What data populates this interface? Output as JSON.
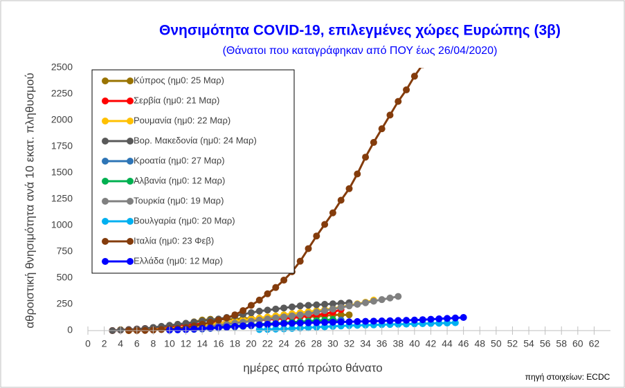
{
  "chart_data": {
    "type": "line",
    "title": "Θνησιμότητα COVID-19, επιλεγμένες χώρες Ευρώπης (3β)",
    "subtitle": "(Θάνατοι που καταγράφηκαν από ΠΟΥ έως 26/04/2020)",
    "x_label": "ημέρες από πρώτο θάνατο",
    "y_label": "αθροιστική θνησιμότητα ανά 10 εκατ. πληθυσμού",
    "source": "πηγή στοιχείων: ECDC",
    "xlim": [
      0,
      64
    ],
    "xticks": [
      0,
      2,
      4,
      6,
      8,
      10,
      12,
      14,
      16,
      18,
      20,
      22,
      24,
      26,
      28,
      30,
      32,
      34,
      36,
      38,
      40,
      42,
      44,
      46,
      48,
      50,
      52,
      54,
      56,
      58,
      60,
      62
    ],
    "ylim": [
      0,
      2500
    ],
    "yticks": [
      0,
      250,
      500,
      750,
      1000,
      1250,
      1500,
      1750,
      2000,
      2250,
      2500
    ],
    "grid": false,
    "legend": "upper left",
    "series": [
      {
        "name": "Κύπρος (ημ0: 25 Μαρ)",
        "color": "#997300",
        "x": [
          3,
          4,
          5,
          6,
          7,
          8,
          9,
          10,
          11,
          12,
          13,
          14,
          15,
          16,
          17,
          18,
          19,
          20,
          21,
          22,
          23,
          24,
          25,
          26,
          27,
          28,
          29,
          30,
          31,
          32
        ],
        "values": [
          0,
          8,
          8,
          8,
          8,
          16,
          25,
          33,
          50,
          58,
          83,
          100,
          108,
          108,
          108,
          108,
          116,
          116,
          116,
          116,
          125,
          125,
          125,
          133,
          133,
          133,
          141,
          150,
          150,
          150
        ]
      },
      {
        "name": "Σερβία (ημ0: 21 Μαρ)",
        "color": "#ff0000",
        "x": [
          3,
          4,
          5,
          6,
          7,
          8,
          9,
          10,
          11,
          12,
          13,
          14,
          15,
          16,
          17,
          18,
          19,
          20,
          21,
          22,
          23,
          24,
          25,
          26,
          27,
          28,
          29,
          30,
          31
        ],
        "values": [
          0,
          5,
          10,
          15,
          20,
          25,
          30,
          40,
          50,
          55,
          60,
          65,
          70,
          75,
          80,
          85,
          90,
          95,
          100,
          105,
          110,
          115,
          120,
          130,
          140,
          150,
          160,
          175,
          200
        ]
      },
      {
        "name": "Ρουμανία (ημ0: 22 Μαρ)",
        "color": "#ffc000",
        "x": [
          5,
          6,
          7,
          8,
          9,
          10,
          11,
          12,
          13,
          14,
          15,
          16,
          17,
          18,
          19,
          20,
          21,
          22,
          23,
          24,
          25,
          26,
          27,
          28,
          29,
          30,
          31,
          32,
          33,
          34,
          35
        ],
        "values": [
          0,
          2,
          5,
          10,
          15,
          20,
          25,
          30,
          40,
          50,
          60,
          70,
          80,
          90,
          100,
          110,
          120,
          130,
          140,
          150,
          160,
          170,
          180,
          190,
          200,
          210,
          225,
          240,
          255,
          270,
          290
        ]
      },
      {
        "name": "Βορ. Μακεδονία (ημ0: 24 Μαρ)",
        "color": "#595959",
        "x": [
          3,
          4,
          5,
          6,
          7,
          8,
          9,
          10,
          11,
          12,
          13,
          14,
          15,
          16,
          17,
          18,
          19,
          20,
          21,
          22,
          23,
          24,
          25,
          26,
          27,
          28,
          29,
          30,
          31,
          32
        ],
        "values": [
          0,
          5,
          10,
          15,
          20,
          30,
          40,
          50,
          60,
          70,
          80,
          90,
          100,
          110,
          125,
          140,
          155,
          170,
          185,
          195,
          205,
          215,
          225,
          235,
          240,
          245,
          250,
          255,
          260,
          265
        ]
      },
      {
        "name": "Κροατία (ημ0: 27 Μαρ)",
        "color": "#2e75b6",
        "x": [
          10,
          11,
          12,
          13,
          14,
          15,
          16,
          17,
          18,
          19,
          20,
          21,
          22,
          23,
          24,
          25,
          26,
          27,
          28,
          29,
          30,
          31
        ],
        "values": [
          5,
          8,
          10,
          12,
          15,
          20,
          25,
          30,
          35,
          40,
          45,
          50,
          55,
          60,
          65,
          70,
          75,
          80,
          85,
          90,
          95,
          100
        ]
      },
      {
        "name": "Αλβανία (ημ0: 12 Μαρ)",
        "color": "#00b050",
        "x": [
          10,
          11,
          12,
          13,
          14,
          15,
          16,
          17,
          18,
          19,
          20,
          21,
          22,
          23,
          24,
          25,
          26,
          27,
          28,
          29,
          30
        ],
        "values": [
          5,
          10,
          15,
          20,
          25,
          30,
          35,
          40,
          45,
          50,
          55,
          60,
          65,
          70,
          75,
          80,
          85,
          90,
          95,
          100,
          105
        ]
      },
      {
        "name": "Τουρκία (ημ0: 19 Μαρ)",
        "color": "#808080",
        "x": [
          10,
          11,
          12,
          13,
          14,
          15,
          16,
          17,
          18,
          19,
          20,
          21,
          22,
          23,
          24,
          25,
          26,
          27,
          28,
          29,
          30,
          31,
          32,
          33,
          34,
          35,
          36,
          37,
          38
        ],
        "values": [
          5,
          10,
          15,
          20,
          30,
          40,
          50,
          60,
          70,
          80,
          90,
          100,
          110,
          120,
          130,
          140,
          150,
          160,
          175,
          190,
          205,
          220,
          235,
          250,
          265,
          280,
          295,
          310,
          325
        ]
      },
      {
        "name": "Βουλγαρία (ημ0: 20 Μαρ)",
        "color": "#00b0f0",
        "x": [
          21,
          22,
          23,
          24,
          25,
          26,
          27,
          28,
          29,
          30,
          31,
          32,
          33,
          34,
          35,
          36,
          37,
          38,
          39,
          40,
          41,
          42,
          43,
          44,
          45
        ],
        "values": [
          10,
          12,
          14,
          16,
          20,
          24,
          28,
          32,
          36,
          40,
          44,
          48,
          50,
          52,
          54,
          56,
          58,
          60,
          62,
          64,
          66,
          68,
          70,
          72,
          75
        ]
      },
      {
        "name": "Ιταλία (ημ0: 23 Φεβ)",
        "color": "#843c0c",
        "x": [
          5,
          6,
          7,
          8,
          9,
          10,
          11,
          12,
          13,
          14,
          15,
          16,
          17,
          18,
          19,
          20,
          21,
          22,
          23,
          24,
          25,
          26,
          27,
          28,
          29,
          30,
          31,
          32,
          33,
          34,
          35,
          36,
          37,
          38,
          39,
          40,
          41,
          42
        ],
        "values": [
          0,
          1,
          2,
          5,
          10,
          15,
          20,
          30,
          45,
          60,
          80,
          100,
          120,
          150,
          190,
          240,
          290,
          350,
          410,
          480,
          560,
          660,
          780,
          900,
          1010,
          1120,
          1240,
          1350,
          1490,
          1650,
          1790,
          1920,
          2050,
          2180,
          2290,
          2420,
          2530,
          2650
        ]
      },
      {
        "name": "Ελλάδα (ημ0: 12 Μαρ)",
        "color": "#0000ff",
        "x": [
          10,
          11,
          12,
          13,
          14,
          15,
          16,
          17,
          18,
          19,
          20,
          21,
          22,
          23,
          24,
          25,
          26,
          27,
          28,
          29,
          30,
          31,
          32,
          33,
          34,
          35,
          36,
          37,
          38,
          39,
          40,
          41,
          42,
          43,
          44,
          45,
          46
        ],
        "values": [
          5,
          8,
          10,
          15,
          20,
          25,
          30,
          35,
          40,
          45,
          50,
          55,
          60,
          65,
          68,
          70,
          72,
          74,
          76,
          78,
          80,
          82,
          84,
          86,
          88,
          90,
          92,
          94,
          96,
          98,
          100,
          104,
          108,
          112,
          116,
          120,
          125
        ]
      }
    ]
  }
}
